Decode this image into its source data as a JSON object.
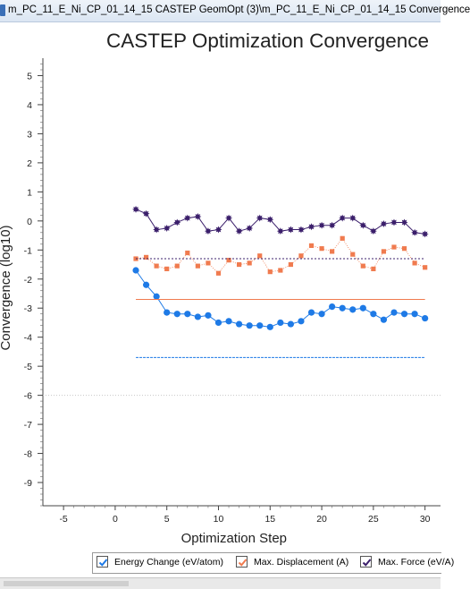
{
  "window": {
    "title": "m_PC_11_E_Ni_CP_01_14_15 CASTEP GeomOpt (3)\\m_PC_11_E_Ni_CP_01_14_15 Convergence"
  },
  "colors": {
    "energy": "#1e7ae6",
    "displacement": "#f07b4f",
    "force": "#3b1f6b",
    "axis_text": "#222222",
    "grid_dot": "#c8c8c8"
  },
  "legend": {
    "items": [
      {
        "label": "Energy Change (eV/atom)",
        "checked": true,
        "color": "#1e7ae6",
        "icon": "checkbox-checked-icon"
      },
      {
        "label": "Max. Displacement (A)",
        "checked": true,
        "color": "#f07b4f",
        "icon": "checkbox-checked-icon"
      },
      {
        "label": "Max. Force (eV/A)",
        "checked": true,
        "color": "#3b1f6b",
        "icon": "checkbox-checked-icon"
      }
    ]
  },
  "chart_data": {
    "type": "line",
    "title": "CASTEP Optimization Convergence",
    "xlabel": "Optimization Step",
    "ylabel": "Convergence (log10)",
    "xlim": [
      -7,
      31.5
    ],
    "ylim": [
      -9.8,
      5.6
    ],
    "x_ticks": [
      -5,
      0,
      5,
      10,
      15,
      20,
      25,
      30
    ],
    "y_ticks": [
      5,
      4,
      3,
      2,
      1,
      0,
      -1,
      -2,
      -3,
      -4,
      -5,
      -6,
      -7,
      -8,
      -9
    ],
    "y_minor_step": 0.2,
    "grid": "dotted horizontal at -6",
    "legend_position": "bottom",
    "series": [
      {
        "name": "Energy Change (eV/atom)",
        "color": "#1e7ae6",
        "marker": "circle",
        "threshold": -4.7,
        "x": [
          2,
          3,
          4,
          5,
          6,
          7,
          8,
          9,
          10,
          11,
          12,
          13,
          14,
          15,
          16,
          17,
          18,
          19,
          20,
          21,
          22,
          23,
          24,
          25,
          26,
          27,
          28,
          29,
          30
        ],
        "y": [
          -1.7,
          -2.2,
          -2.6,
          -3.15,
          -3.2,
          -3.2,
          -3.3,
          -3.25,
          -3.5,
          -3.45,
          -3.55,
          -3.6,
          -3.6,
          -3.65,
          -3.5,
          -3.55,
          -3.45,
          -3.15,
          -3.2,
          -2.95,
          -3.0,
          -3.05,
          -3.0,
          -3.2,
          -3.4,
          -3.15,
          -3.2,
          -3.2,
          -3.35
        ]
      },
      {
        "name": "Max. Displacement (A)",
        "color": "#f07b4f",
        "marker": "square",
        "threshold": -2.7,
        "x": [
          2,
          3,
          4,
          5,
          6,
          7,
          8,
          9,
          10,
          11,
          12,
          13,
          14,
          15,
          16,
          17,
          18,
          19,
          20,
          21,
          22,
          23,
          24,
          25,
          26,
          27,
          28,
          29,
          30
        ],
        "y": [
          -1.3,
          -1.25,
          -1.55,
          -1.65,
          -1.55,
          -1.1,
          -1.55,
          -1.45,
          -1.8,
          -1.35,
          -1.5,
          -1.45,
          -1.2,
          -1.75,
          -1.7,
          -1.5,
          -1.2,
          -0.85,
          -0.95,
          -1.05,
          -0.6,
          -1.15,
          -1.55,
          -1.65,
          -1.05,
          -0.9,
          -0.95,
          -1.45,
          -1.6
        ]
      },
      {
        "name": "Max. Force (eV/A)",
        "color": "#3b1f6b",
        "marker": "star",
        "threshold": -1.3,
        "x": [
          2,
          3,
          4,
          5,
          6,
          7,
          8,
          9,
          10,
          11,
          12,
          13,
          14,
          15,
          16,
          17,
          18,
          19,
          20,
          21,
          22,
          23,
          24,
          25,
          26,
          27,
          28,
          29,
          30
        ],
        "y": [
          0.4,
          0.25,
          -0.3,
          -0.25,
          -0.05,
          0.1,
          0.15,
          -0.35,
          -0.3,
          0.1,
          -0.35,
          -0.25,
          0.1,
          0.05,
          -0.35,
          -0.3,
          -0.3,
          -0.2,
          -0.15,
          -0.15,
          0.1,
          0.1,
          -0.15,
          -0.35,
          -0.1,
          -0.05,
          -0.05,
          -0.4,
          -0.45
        ]
      }
    ]
  }
}
